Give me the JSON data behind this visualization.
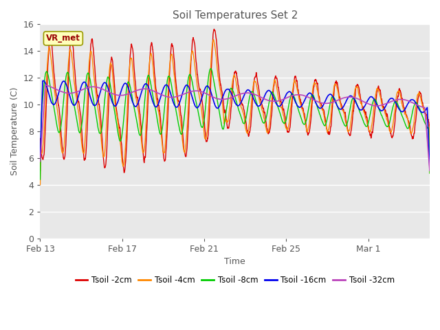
{
  "title": "Soil Temperatures Set 2",
  "xlabel": "Time",
  "ylabel": "Soil Temperature (C)",
  "ylim": [
    0,
    16
  ],
  "yticks": [
    0,
    2,
    4,
    6,
    8,
    10,
    12,
    14,
    16
  ],
  "xtick_labels": [
    "Feb 13",
    "Feb 17",
    "Feb 21",
    "Feb 25",
    "Mar 1"
  ],
  "xtick_positions": [
    0,
    4,
    8,
    12,
    16
  ],
  "plot_bg_color": "#e8e8e8",
  "fig_bg_color": "#ffffff",
  "legend_labels": [
    "Tsoil -2cm",
    "Tsoil -4cm",
    "Tsoil -8cm",
    "Tsoil -16cm",
    "Tsoil -32cm"
  ],
  "line_colors": [
    "#dd0000",
    "#ff8800",
    "#00cc00",
    "#0000ee",
    "#bb44bb"
  ],
  "annotation_text": "VR_met",
  "grid_color": "#ffffff",
  "title_color": "#555555",
  "label_color": "#555555",
  "tick_color": "#555555"
}
